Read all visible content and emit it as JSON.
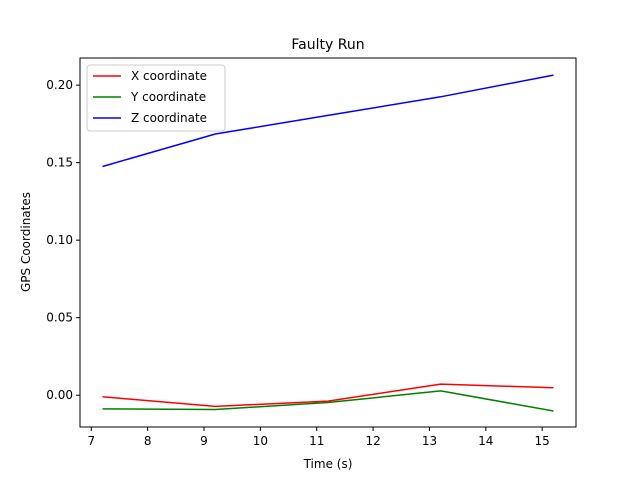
{
  "chart_data": {
    "type": "line",
    "title": "Faulty Run",
    "xlabel": "Time (s)",
    "ylabel": "GPS Coordinates",
    "xlim": [
      6.8,
      15.6
    ],
    "ylim": [
      -0.0205,
      0.2175
    ],
    "xticks": [
      7,
      8,
      9,
      10,
      11,
      12,
      13,
      14,
      15
    ],
    "xtick_labels": [
      "7",
      "8",
      "9",
      "10",
      "11",
      "12",
      "13",
      "14",
      "15"
    ],
    "yticks": [
      0.0,
      0.05,
      0.1,
      0.15,
      0.2
    ],
    "ytick_labels": [
      "0.00",
      "0.05",
      "0.10",
      "0.15",
      "0.20"
    ],
    "grid": false,
    "legend_position": "top-left",
    "x": [
      7.2,
      9.2,
      11.2,
      13.2,
      15.2
    ],
    "series": [
      {
        "name": "X coordinate",
        "color": "#ff0000",
        "values": [
          -0.001,
          -0.0072,
          -0.0038,
          0.0072,
          0.0048
        ]
      },
      {
        "name": "Y coordinate",
        "color": "#008000",
        "values": [
          -0.0088,
          -0.0092,
          -0.0047,
          0.0028,
          -0.0102
        ]
      },
      {
        "name": "Z coordinate",
        "color": "#0000ff",
        "values": [
          0.1475,
          0.1685,
          0.1805,
          0.1925,
          0.2065
        ]
      }
    ]
  }
}
